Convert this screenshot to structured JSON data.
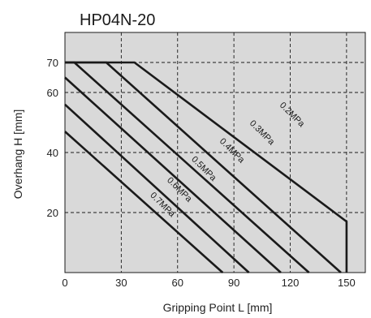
{
  "chart_data": {
    "type": "line",
    "title": "HP04N-20",
    "xlabel": "Gripping Point L [mm]",
    "ylabel": "Overhang H [mm]",
    "xlim": [
      0,
      160
    ],
    "ylim": [
      0,
      80
    ],
    "xticks": [
      0,
      30,
      60,
      90,
      120,
      150
    ],
    "yticks": [
      20,
      40,
      60,
      70
    ],
    "grid": true,
    "series": [
      {
        "name": "0.2MPa",
        "points": [
          [
            0,
            70
          ],
          [
            37,
            70
          ],
          [
            150,
            17
          ],
          [
            150,
            0
          ]
        ]
      },
      {
        "name": "0.3MPa",
        "points": [
          [
            0,
            70
          ],
          [
            22,
            70
          ],
          [
            147,
            0
          ]
        ]
      },
      {
        "name": "0.4MPa",
        "points": [
          [
            0,
            70
          ],
          [
            5,
            70
          ],
          [
            130,
            0
          ]
        ]
      },
      {
        "name": "0.5MPa",
        "points": [
          [
            0,
            65
          ],
          [
            115,
            0
          ]
        ]
      },
      {
        "name": "0.6MPa",
        "points": [
          [
            0,
            56
          ],
          [
            98,
            0
          ]
        ]
      },
      {
        "name": "0.7MPa",
        "points": [
          [
            0,
            47
          ],
          [
            84,
            0
          ]
        ]
      }
    ],
    "series_labels": [
      {
        "text": "0.2MPa",
        "at": [
          120,
          52
        ]
      },
      {
        "text": "0.3MPa",
        "at": [
          104,
          46
        ]
      },
      {
        "text": "0.4MPa",
        "at": [
          88,
          40
        ]
      },
      {
        "text": "0.5MPa",
        "at": [
          73,
          34
        ]
      },
      {
        "text": "0.6MPa",
        "at": [
          60,
          27
        ]
      },
      {
        "text": "0.7MPa",
        "at": [
          51,
          22
        ]
      }
    ],
    "colors": {
      "plot_bg": "#d9d9d9",
      "line": "#1a1a1a",
      "grid": "#1a1a1a"
    }
  }
}
